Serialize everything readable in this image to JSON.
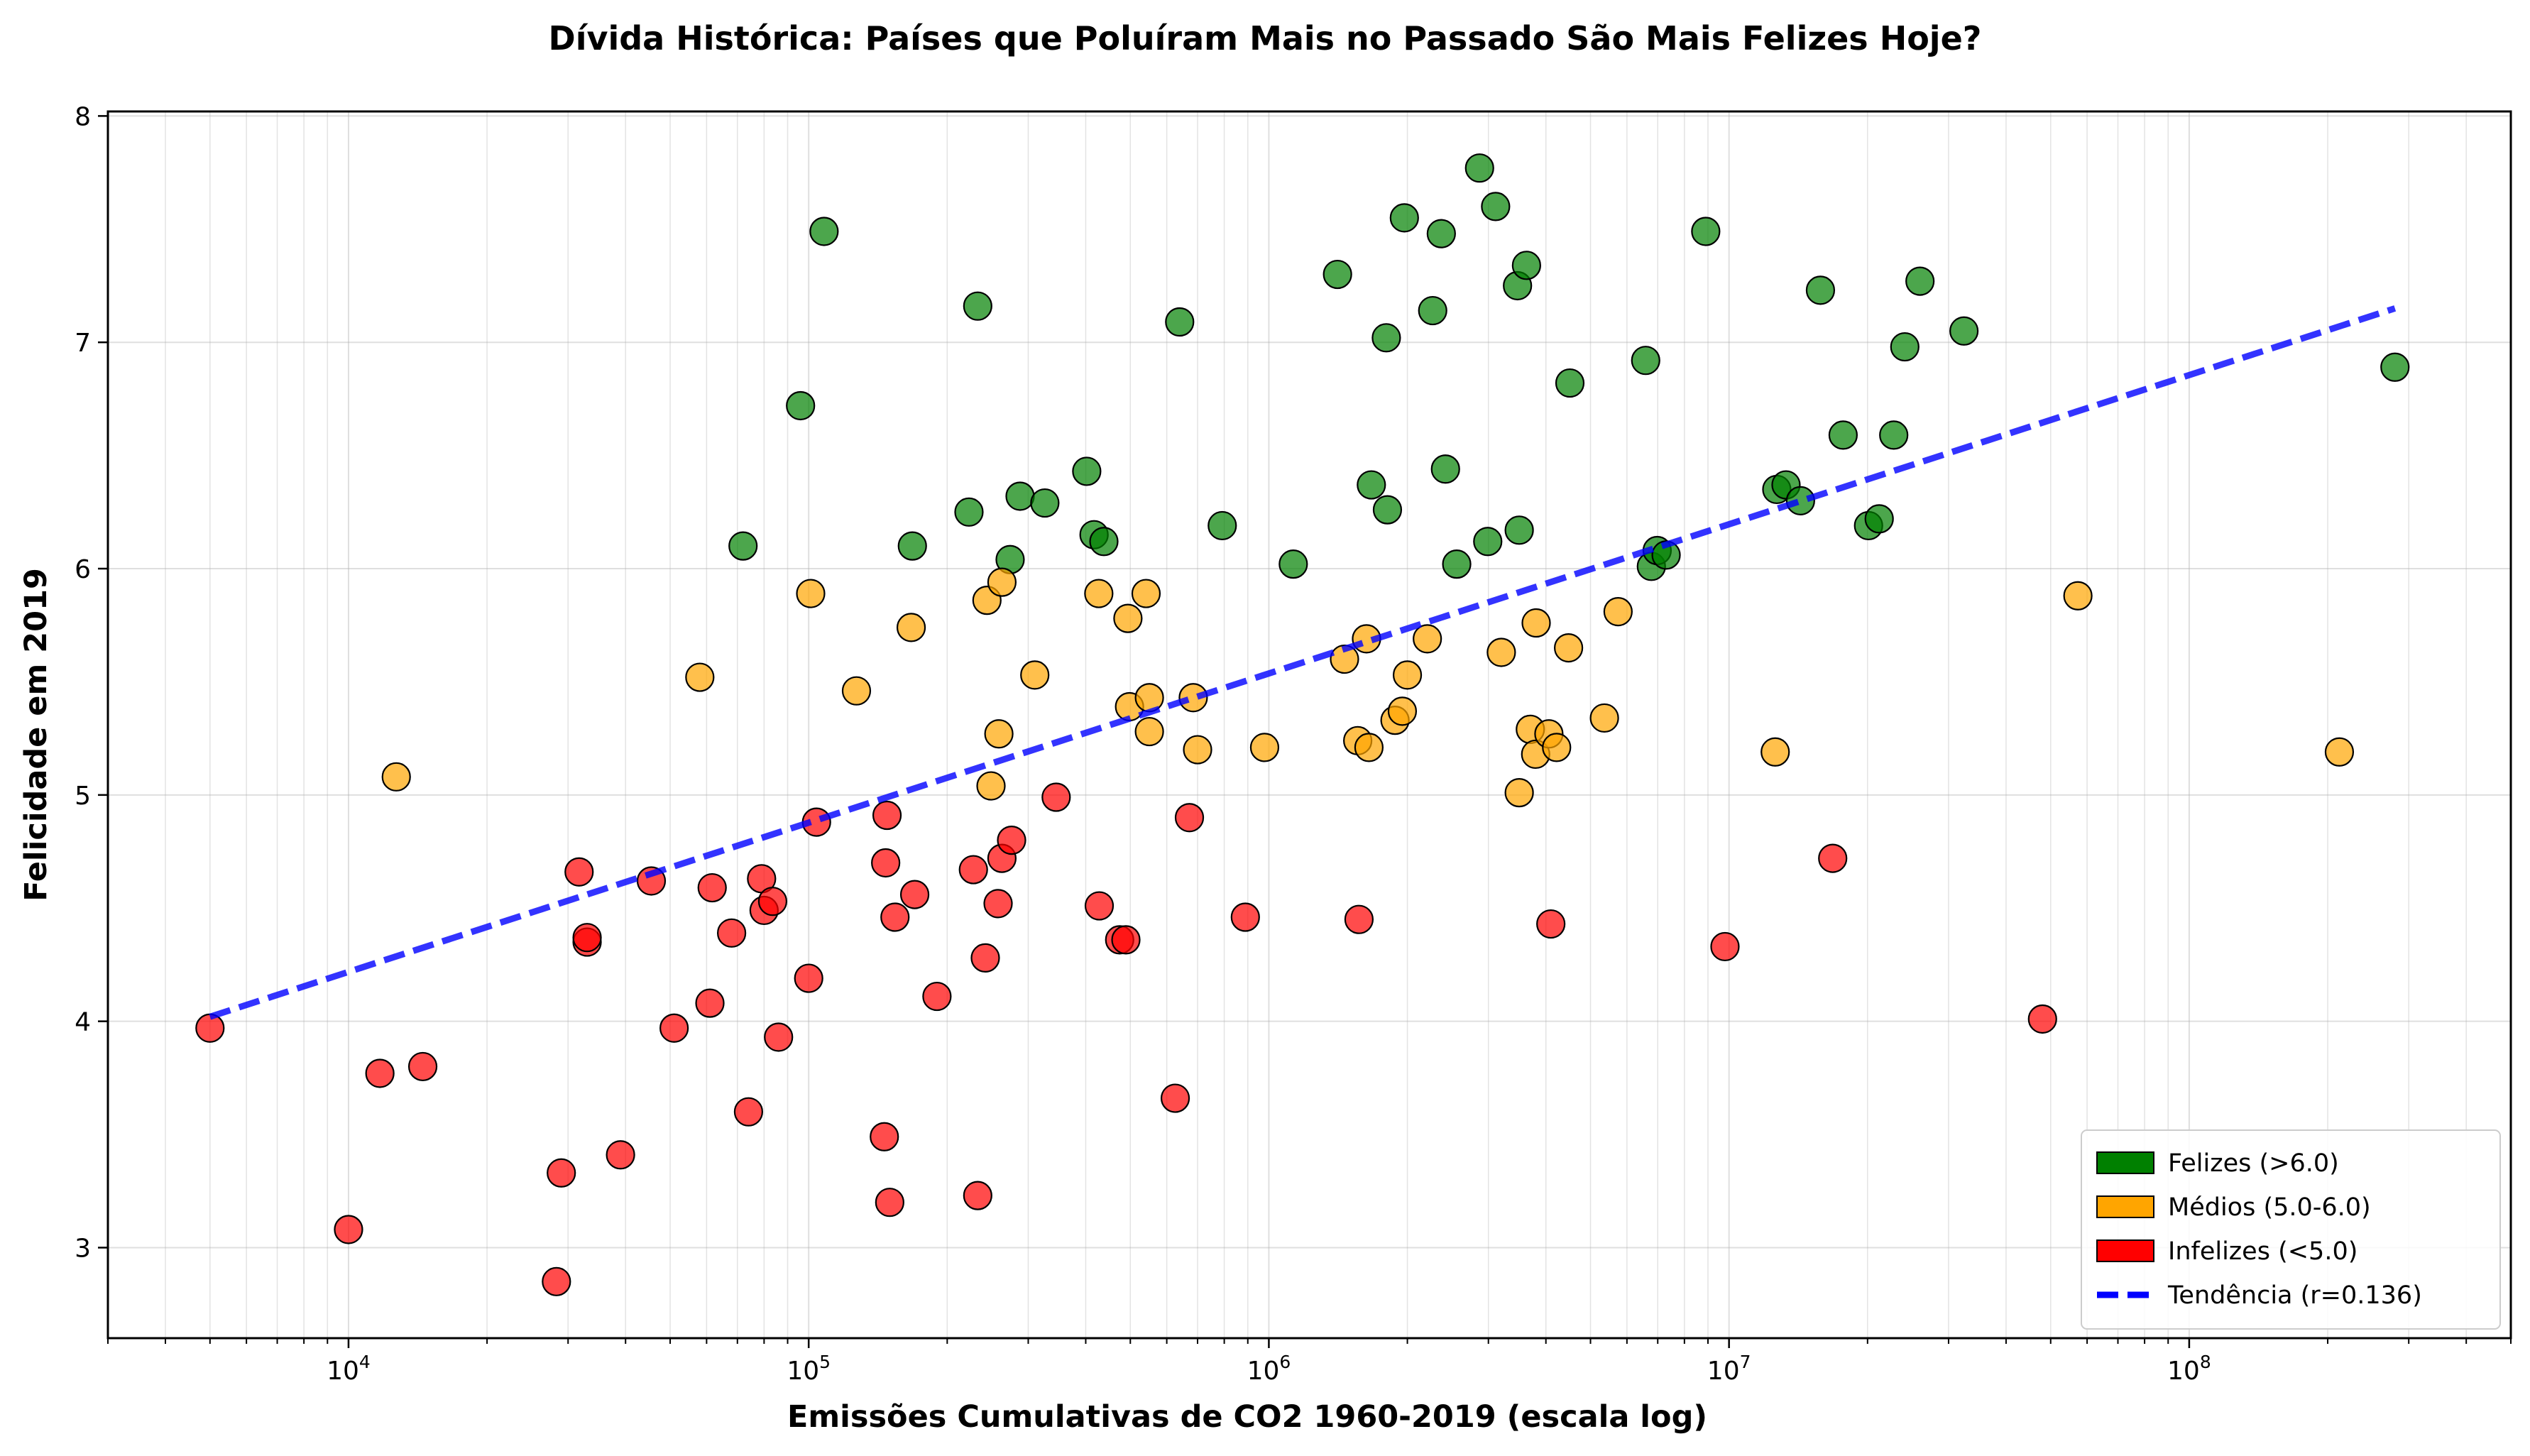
{
  "chart_data": {
    "type": "scatter",
    "title": "Dívida Histórica: Países que Poluíram Mais no Passado São Mais Felizes Hoje?",
    "xlabel": "Emissões Cumulativas de CO2 1960-2019 (escala log)",
    "ylabel": "Felicidade em 2019",
    "xscale": "log",
    "xlim": [
      3000,
      500000000
    ],
    "ylim": [
      2.6,
      8.02
    ],
    "x_ticks": [
      {
        "value": 10000,
        "base": "10",
        "exp": "4"
      },
      {
        "value": 100000,
        "base": "10",
        "exp": "5"
      },
      {
        "value": 1000000,
        "base": "10",
        "exp": "6"
      },
      {
        "value": 10000000,
        "base": "10",
        "exp": "7"
      },
      {
        "value": 100000000,
        "base": "10",
        "exp": "8"
      }
    ],
    "y_ticks": [
      "3",
      "4",
      "5",
      "6",
      "7",
      "8"
    ],
    "grid": true,
    "legend_position": "lower-right",
    "colors": {
      "happy": "#008000",
      "medium": "#ffa500",
      "unhappy": "#ff0000",
      "trend": "#0000ff"
    },
    "trend": {
      "name": "Tendência (r=0.136)",
      "x": [
        5000,
        280000000
      ],
      "y": [
        4.02,
        7.15
      ]
    },
    "series": [
      {
        "name": "Felizes (>6.0)",
        "color": "#008000",
        "points": [
          [
            108000,
            7.49
          ],
          [
            96000,
            6.72
          ],
          [
            72000,
            6.1
          ],
          [
            233000,
            7.16
          ],
          [
            168000,
            6.1
          ],
          [
            223000,
            6.25
          ],
          [
            288000,
            6.32
          ],
          [
            326000,
            6.29
          ],
          [
            274000,
            6.04
          ],
          [
            402000,
            6.43
          ],
          [
            417000,
            6.15
          ],
          [
            438000,
            6.12
          ],
          [
            640000,
            7.09
          ],
          [
            792000,
            6.19
          ],
          [
            1130000,
            6.02
          ],
          [
            1410000,
            7.3
          ],
          [
            1670000,
            6.37
          ],
          [
            1800000,
            7.02
          ],
          [
            1810000,
            6.26
          ],
          [
            1970000,
            7.55
          ],
          [
            2270000,
            7.14
          ],
          [
            2370000,
            7.48
          ],
          [
            2420000,
            6.44
          ],
          [
            2560000,
            6.02
          ],
          [
            2870000,
            7.77
          ],
          [
            2990000,
            6.12
          ],
          [
            3110000,
            7.6
          ],
          [
            3470000,
            7.25
          ],
          [
            3500000,
            6.17
          ],
          [
            3630000,
            7.34
          ],
          [
            4510000,
            6.82
          ],
          [
            6590000,
            6.92
          ],
          [
            6780000,
            6.01
          ],
          [
            6980000,
            6.08
          ],
          [
            7300000,
            6.06
          ],
          [
            8900000,
            7.49
          ],
          [
            12700000,
            6.35
          ],
          [
            13300000,
            6.37
          ],
          [
            14300000,
            6.3
          ],
          [
            15800000,
            7.23
          ],
          [
            17700000,
            6.59
          ],
          [
            20100000,
            6.19
          ],
          [
            21200000,
            6.22
          ],
          [
            22800000,
            6.59
          ],
          [
            24100000,
            6.98
          ],
          [
            26000000,
            7.27
          ],
          [
            32400000,
            7.05
          ],
          [
            280000000,
            6.89
          ]
        ]
      },
      {
        "name": "Médios (5.0-6.0)",
        "color": "#ffa500",
        "points": [
          [
            12700,
            5.08
          ],
          [
            58000,
            5.52
          ],
          [
            101000,
            5.89
          ],
          [
            127000,
            5.46
          ],
          [
            167000,
            5.74
          ],
          [
            244000,
            5.86
          ],
          [
            249000,
            5.04
          ],
          [
            259000,
            5.27
          ],
          [
            263000,
            5.94
          ],
          [
            310000,
            5.53
          ],
          [
            427000,
            5.89
          ],
          [
            494000,
            5.78
          ],
          [
            498000,
            5.39
          ],
          [
            541000,
            5.89
          ],
          [
            550000,
            5.43
          ],
          [
            550000,
            5.28
          ],
          [
            685000,
            5.43
          ],
          [
            700000,
            5.2
          ],
          [
            979000,
            5.21
          ],
          [
            1460000,
            5.6
          ],
          [
            1560000,
            5.24
          ],
          [
            1630000,
            5.69
          ],
          [
            1650000,
            5.21
          ],
          [
            1880000,
            5.33
          ],
          [
            1950000,
            5.37
          ],
          [
            2000000,
            5.53
          ],
          [
            2210000,
            5.69
          ],
          [
            3200000,
            5.63
          ],
          [
            3500000,
            5.01
          ],
          [
            3700000,
            5.29
          ],
          [
            3800000,
            5.18
          ],
          [
            3810000,
            5.76
          ],
          [
            4060000,
            5.27
          ],
          [
            4220000,
            5.21
          ],
          [
            4480000,
            5.65
          ],
          [
            5360000,
            5.34
          ],
          [
            5740000,
            5.81
          ],
          [
            12600000,
            5.19
          ],
          [
            57300000,
            5.88
          ],
          [
            212000000,
            5.19
          ]
        ]
      },
      {
        "name": "Infelizes (<5.0)",
        "color": "#ff0000",
        "points": [
          [
            5000,
            3.97
          ],
          [
            10000,
            3.08
          ],
          [
            11700,
            3.77
          ],
          [
            14500,
            3.8
          ],
          [
            28300,
            2.85
          ],
          [
            29000,
            3.33
          ],
          [
            31700,
            4.66
          ],
          [
            33000,
            4.35
          ],
          [
            33000,
            4.37
          ],
          [
            39000,
            3.41
          ],
          [
            45500,
            4.62
          ],
          [
            51000,
            3.97
          ],
          [
            61000,
            4.08
          ],
          [
            61700,
            4.59
          ],
          [
            68000,
            4.39
          ],
          [
            74000,
            3.6
          ],
          [
            79000,
            4.63
          ],
          [
            80000,
            4.49
          ],
          [
            83500,
            4.53
          ],
          [
            86000,
            3.93
          ],
          [
            100000,
            4.19
          ],
          [
            104000,
            4.88
          ],
          [
            146000,
            3.49
          ],
          [
            147000,
            4.7
          ],
          [
            148000,
            4.91
          ],
          [
            150000,
            3.2
          ],
          [
            154000,
            4.46
          ],
          [
            170000,
            4.56
          ],
          [
            190000,
            4.11
          ],
          [
            228000,
            4.67
          ],
          [
            233000,
            3.23
          ],
          [
            242000,
            4.28
          ],
          [
            258000,
            4.52
          ],
          [
            263000,
            4.72
          ],
          [
            276000,
            4.8
          ],
          [
            345000,
            4.99
          ],
          [
            428000,
            4.51
          ],
          [
            474000,
            4.36
          ],
          [
            489000,
            4.36
          ],
          [
            626000,
            3.66
          ],
          [
            672000,
            4.9
          ],
          [
            889000,
            4.46
          ],
          [
            1570000,
            4.45
          ],
          [
            4100000,
            4.43
          ],
          [
            9800000,
            4.33
          ],
          [
            16800000,
            4.72
          ],
          [
            48000000,
            4.01
          ]
        ]
      }
    ]
  }
}
